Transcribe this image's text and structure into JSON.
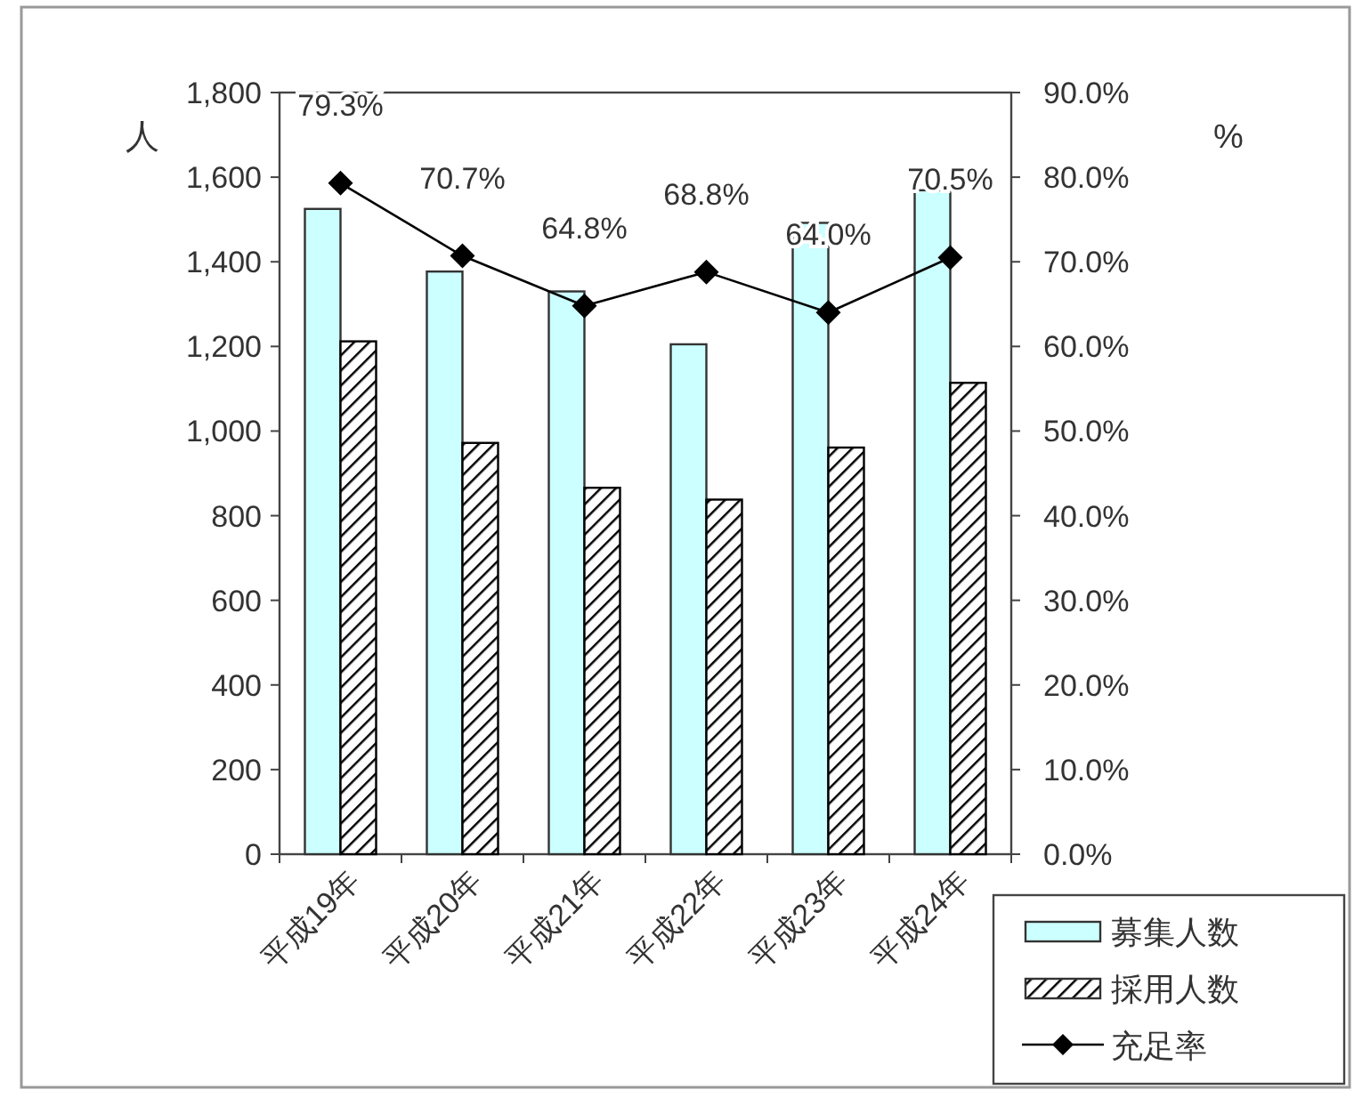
{
  "chart_data": {
    "type": "bar",
    "categories": [
      "平成19年",
      "平成20年",
      "平成21年",
      "平成22年",
      "平成23年",
      "平成24年"
    ],
    "series": [
      {
        "name": "募集人数",
        "color": "#ccffff",
        "values": [
          1525,
          1377,
          1330,
          1205,
          1492,
          1569
        ]
      },
      {
        "name": "採用人数",
        "color": "#000000",
        "values": [
          1212,
          972,
          866,
          838,
          961,
          1114
        ]
      },
      {
        "name": "充足率",
        "type": "line",
        "axis": "y2",
        "color": "#000000",
        "marker": "diamond",
        "values": [
          79.3,
          70.7,
          64.8,
          68.8,
          64.0,
          70.5
        ],
        "value_labels": [
          "79.3%",
          "70.7%",
          "64.8%",
          "68.8%",
          "64.0%",
          "70.5%"
        ]
      }
    ],
    "ylabel": "人",
    "y2label": "%",
    "ylim": [
      0,
      1800
    ],
    "yticks": [
      0,
      200,
      400,
      600,
      800,
      {
        "value": 1000,
        "label": "1,000"
      },
      {
        "value": 1200,
        "label": "1,200"
      },
      {
        "value": 1400,
        "label": "1,400"
      },
      {
        "value": 1600,
        "label": "1,600"
      },
      {
        "value": 1800,
        "label": "1,800"
      }
    ],
    "y2lim": [
      0,
      90
    ],
    "y2ticks": [
      {
        "value": 0,
        "label": "0.0%"
      },
      {
        "value": 10,
        "label": "10.0%"
      },
      {
        "value": 20,
        "label": "20.0%"
      },
      {
        "value": 30,
        "label": "30.0%"
      },
      {
        "value": 40,
        "label": "40.0%"
      },
      {
        "value": 50,
        "label": "50.0%"
      },
      {
        "value": 60,
        "label": "60.0%"
      },
      {
        "value": 70,
        "label": "70.0%"
      },
      {
        "value": 80,
        "label": "80.0%"
      },
      {
        "value": 90,
        "label": "90.0%"
      }
    ],
    "grid": false,
    "legend": "bottom right"
  }
}
